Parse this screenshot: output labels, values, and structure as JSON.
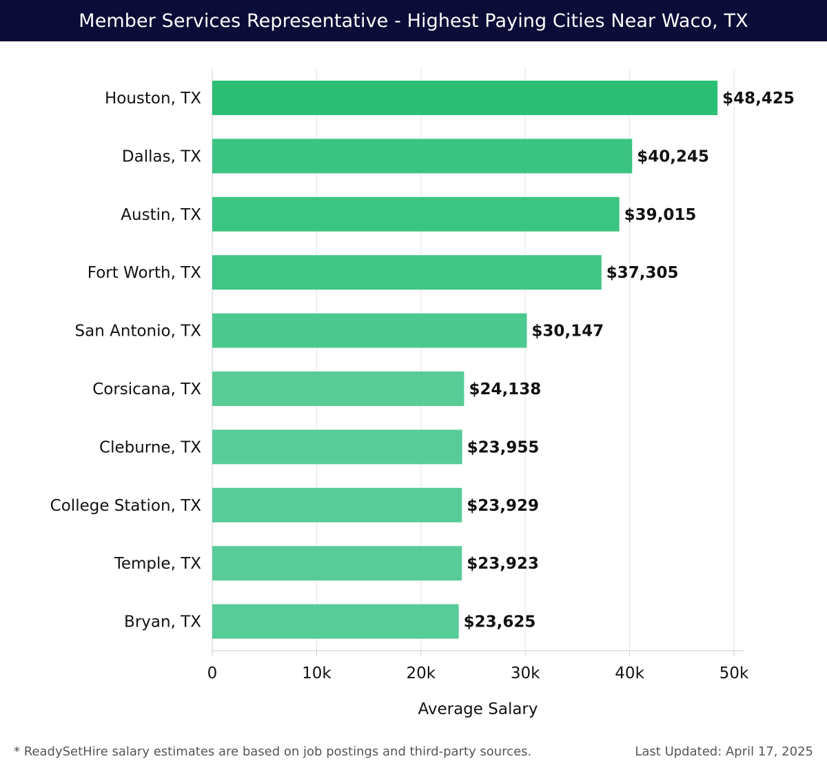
{
  "chart_data": {
    "type": "bar",
    "orientation": "horizontal",
    "title": "Member Services Representative - Highest Paying Cities Near Waco, TX",
    "xlabel": "Average Salary",
    "ylabel": "",
    "xlim": [
      0,
      50000
    ],
    "ticks": [
      {
        "value": 0,
        "label": "0"
      },
      {
        "value": 10000,
        "label": "10k"
      },
      {
        "value": 20000,
        "label": "20k"
      },
      {
        "value": 30000,
        "label": "30k"
      },
      {
        "value": 40000,
        "label": "40k"
      },
      {
        "value": 50000,
        "label": "50k"
      }
    ],
    "categories": [
      "Houston, TX",
      "Dallas, TX",
      "Austin, TX",
      "Fort Worth, TX",
      "San Antonio, TX",
      "Corsicana, TX",
      "Cleburne, TX",
      "College Station, TX",
      "Temple, TX",
      "Bryan, TX"
    ],
    "values": [
      48425,
      40245,
      39015,
      37305,
      30147,
      24138,
      23955,
      23929,
      23923,
      23625
    ],
    "value_labels": [
      "$48,425",
      "$40,245",
      "$39,015",
      "$37,305",
      "$30,147",
      "$24,138",
      "$23,955",
      "$23,929",
      "$23,923",
      "$23,625"
    ],
    "grid": true,
    "colors": {
      "bar_max": "#2bbf75",
      "bar_min": "#58cc98",
      "grid": "#e3e3e3",
      "axis": "#cccccc"
    }
  },
  "footer": {
    "note": "* ReadySetHire salary estimates are based on job postings and third-party sources.",
    "updated": "Last Updated: April 17, 2025"
  }
}
